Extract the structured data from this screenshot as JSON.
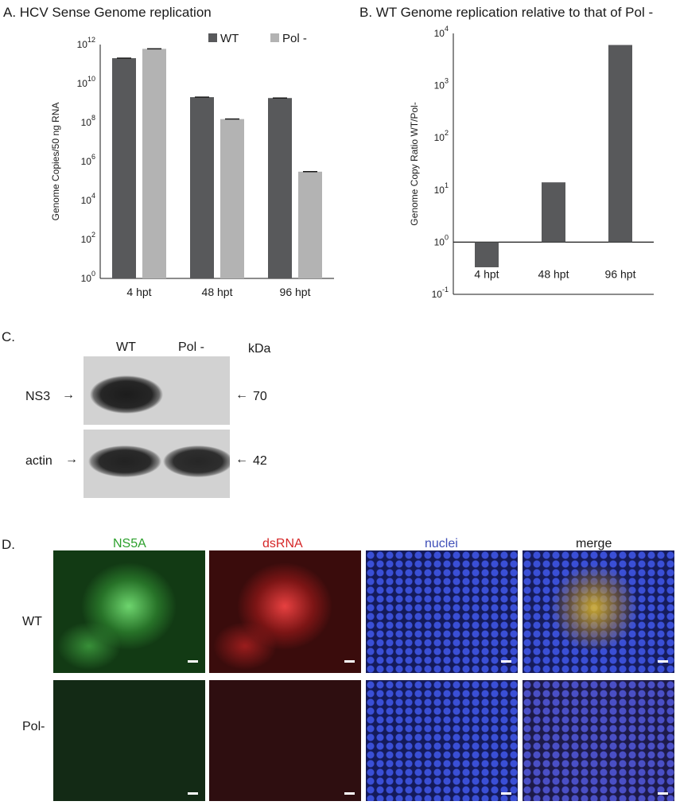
{
  "panelA": {
    "title": "A. HCV Sense Genome replication",
    "chart_data": {
      "type": "bar",
      "title": "A. HCV Sense Genome replication",
      "ylabel": "Genome Copies/50 ng RNA",
      "yscale": "log",
      "ylim": [
        1,
        1000000000000
      ],
      "yticks": [
        "10^0",
        "10^2",
        "10^4",
        "10^6",
        "10^8",
        "10^10",
        "10^12"
      ],
      "categories": [
        "4 hpt",
        "48 hpt",
        "96 hpt"
      ],
      "legend_position": "top-right",
      "series": [
        {
          "name": "WT",
          "color": "#58595b",
          "values": [
            200000000000,
            2000000000,
            1800000000
          ]
        },
        {
          "name": "Pol -",
          "color": "#b3b3b3",
          "values": [
            600000000000,
            150000000,
            300000
          ]
        }
      ]
    }
  },
  "panelB": {
    "title": "B. WT Genome replication relative to that of Pol -",
    "chart_data": {
      "type": "bar",
      "title": "B. WT Genome replication relative to that of Pol -",
      "ylabel": "Genome Copy Ratio WT/Pol-",
      "yscale": "log",
      "ylim": [
        0.1,
        10000
      ],
      "yticks": [
        "10^-1",
        "10^0",
        "10^1",
        "10^2",
        "10^3",
        "10^4"
      ],
      "categories": [
        "4 hpt",
        "48 hpt",
        "96 hpt"
      ],
      "series": [
        {
          "name": "",
          "color": "#58595b",
          "values": [
            0.33,
            14,
            6000
          ]
        }
      ]
    }
  },
  "panelC": {
    "label": "C.",
    "lanes": [
      "WT",
      "Pol -"
    ],
    "unit": "kDa",
    "rows": [
      {
        "protein": "NS3",
        "size": "70"
      },
      {
        "protein": "actin",
        "size": "42"
      }
    ]
  },
  "panelD": {
    "label": "D.",
    "channels": [
      {
        "name": "NS5A",
        "color": "#2ca02c"
      },
      {
        "name": "dsRNA",
        "color": "#d62728"
      },
      {
        "name": "nuclei",
        "color": "#3f4fb8"
      },
      {
        "name": "merge",
        "color": "#1a1a1a"
      }
    ],
    "rows": [
      "WT",
      "Pol-"
    ]
  }
}
